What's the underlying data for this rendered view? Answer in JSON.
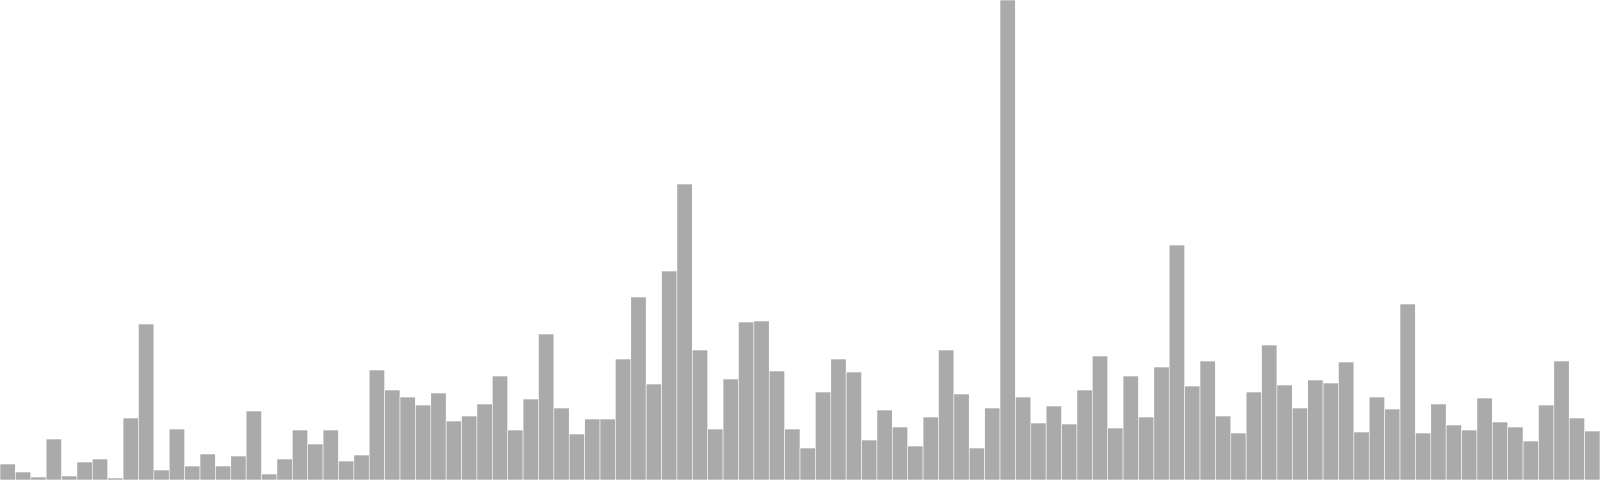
{
  "chart_data": {
    "type": "bar",
    "title": "",
    "xlabel": "",
    "ylabel": "",
    "ylim": [
      0,
      480
    ],
    "grid": false,
    "legend": "none",
    "bar_color": "#aaaaaa",
    "edge_color": "#ffffff",
    "values": [
      16,
      8,
      3,
      41,
      4,
      18,
      21,
      2,
      62,
      156,
      10,
      51,
      14,
      26,
      14,
      24,
      69,
      6,
      21,
      50,
      36,
      50,
      19,
      25,
      110,
      90,
      83,
      75,
      87,
      59,
      64,
      76,
      104,
      50,
      81,
      146,
      72,
      46,
      61,
      61,
      121,
      183,
      96,
      209,
      296,
      130,
      51,
      101,
      158,
      159,
      109,
      51,
      32,
      88,
      121,
      108,
      40,
      70,
      53,
      34,
      63,
      130,
      86,
      32,
      72,
      480,
      83,
      57,
      74,
      56,
      90,
      124,
      52,
      104,
      63,
      113,
      235,
      94,
      119,
      64,
      47,
      88,
      135,
      95,
      72,
      100,
      97,
      118,
      48,
      83,
      71,
      176,
      47,
      76,
      55,
      50,
      82,
      58,
      53,
      39,
      75,
      119,
      62,
      49
    ]
  }
}
